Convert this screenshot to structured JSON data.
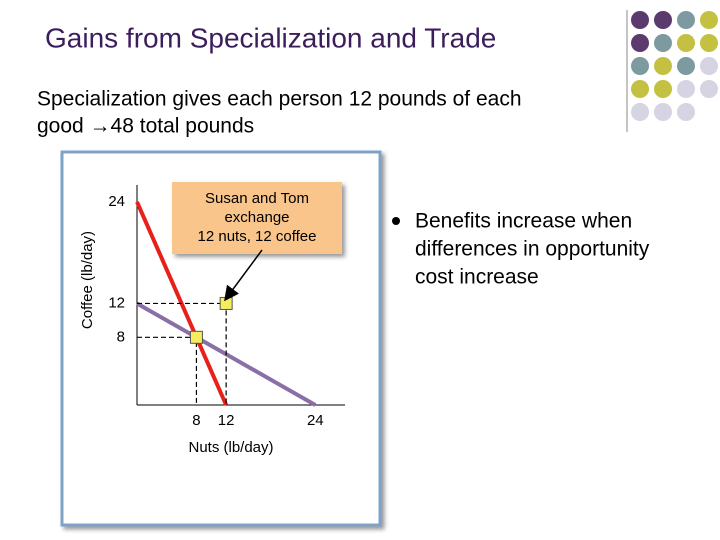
{
  "title": "Gains from Specialization and Trade",
  "subtitle": [
    "Specialization gives each person 12 pounds of each",
    "good →48 total pounds"
  ],
  "bullet": [
    "Benefits increase when",
    "differences in opportunity",
    "cost increase"
  ],
  "callout": [
    "Susan and Tom",
    "exchange",
    "12 nuts, 12 coffee"
  ],
  "chart_data": {
    "type": "line",
    "xlabel": "Nuts  (lb/day)",
    "ylabel": "Coffee  (lb/day)",
    "xlim": [
      0,
      28
    ],
    "ylim": [
      0,
      26
    ],
    "xticks": [
      8,
      12,
      24
    ],
    "yticks": [
      8,
      12,
      24
    ],
    "series": [
      {
        "color": "#e8201c",
        "x": [
          0,
          12
        ],
        "values": [
          24,
          0
        ]
      },
      {
        "color": "#8a6fa6",
        "x": [
          0,
          24
        ],
        "values": [
          12,
          0
        ]
      }
    ],
    "points": {
      "color": "#f5ec5e",
      "x": [
        12,
        8
      ],
      "values": [
        12,
        8
      ]
    }
  }
}
